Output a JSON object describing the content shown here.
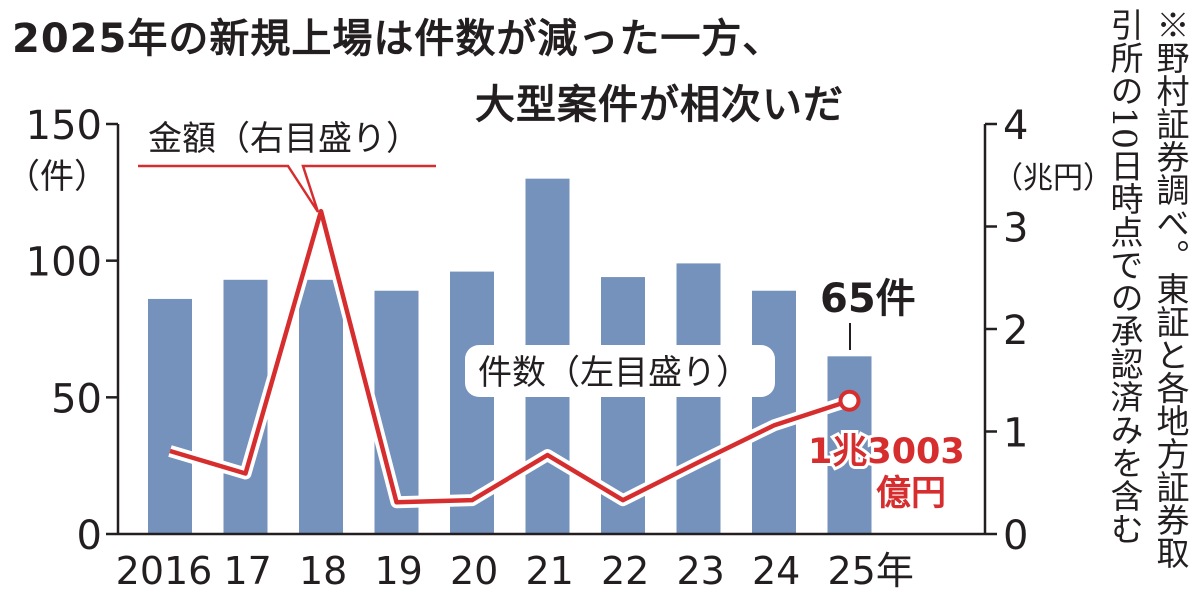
{
  "title_line1": "2025年の新規上場は件数が減った一方、",
  "title_line2": "大型案件が相次いだ",
  "note_col1": "※野村証券調べ。東証と各地方証券取",
  "note_col2": "引所の10日時点での承認済みを含む",
  "chart_data": {
    "type": "bar+line",
    "categories": [
      "2016",
      "17",
      "18",
      "19",
      "20",
      "21",
      "22",
      "23",
      "24",
      "25年"
    ],
    "series": [
      {
        "name": "件数（左目盛り）",
        "type": "bar",
        "axis": "left",
        "values": [
          86,
          93,
          93,
          89,
          96,
          130,
          94,
          99,
          89,
          65
        ],
        "color": "#7492bb"
      },
      {
        "name": "金額（右目盛り）",
        "type": "line",
        "axis": "right",
        "values": [
          0.81,
          0.59,
          3.15,
          0.31,
          0.33,
          0.77,
          0.33,
          0.7,
          1.06,
          1.3
        ],
        "color": "#d62e2e"
      }
    ],
    "left_axis": {
      "ylim": [
        0,
        150
      ],
      "ticks": [
        "0",
        "50",
        "100",
        "150"
      ],
      "unit": "（件）"
    },
    "right_axis": {
      "ylim": [
        0,
        4
      ],
      "ticks": [
        "0",
        "1",
        "2",
        "3",
        "4"
      ],
      "unit": "（兆円）"
    },
    "annotations": {
      "last_bar_label": "65件",
      "last_line_label_line1": "1兆3003",
      "last_line_label_line2": "億円",
      "line_legend": "金額（右目盛り）",
      "bar_legend": "件数（左目盛り）"
    },
    "grid": false
  }
}
